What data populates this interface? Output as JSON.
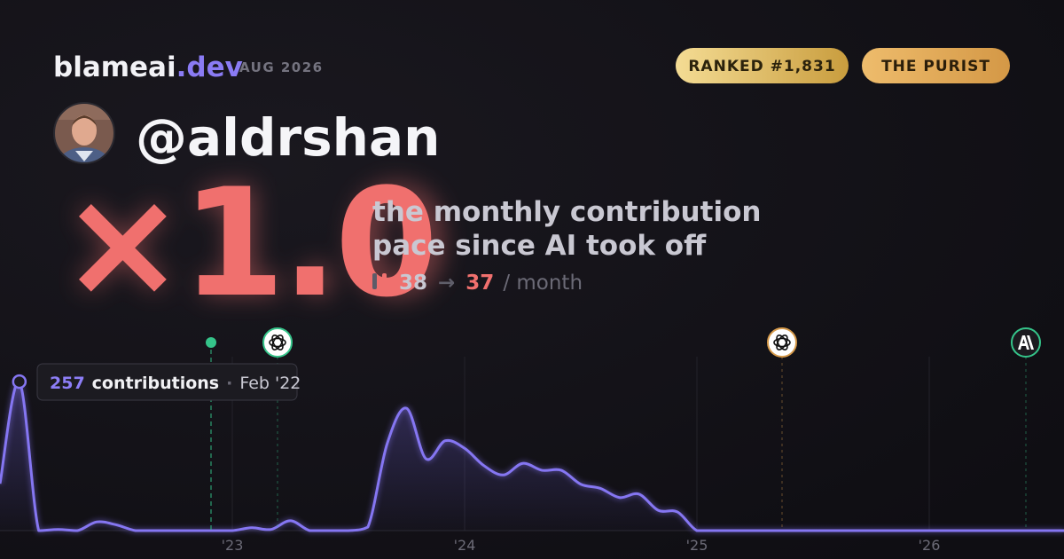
{
  "header": {
    "brand": "blameai",
    "brand_tld": ".dev",
    "period": "AUG 2026",
    "badges": [
      "RANKED #1,831",
      "THE PURIST"
    ]
  },
  "profile": {
    "handle": "@aldrshan"
  },
  "headline": {
    "multiplier": "×1.0",
    "description": [
      "the monthly contribution",
      "pace since AI took off"
    ],
    "before": 38,
    "arrow": "→",
    "after": 37,
    "unit": "/ month"
  },
  "tooltip": {
    "label": "contributions",
    "separator": "·",
    "date": "Feb '22"
  },
  "chart_data": {
    "type": "area",
    "color": "#8576f2",
    "categories": [
      null,
      null,
      null,
      null,
      null,
      null,
      null,
      null,
      null,
      null,
      null,
      null,
      "'23",
      null,
      null,
      null,
      null,
      null,
      null,
      null,
      null,
      null,
      null,
      null,
      "'24",
      null,
      null,
      null,
      null,
      null,
      null,
      null,
      null,
      null,
      null,
      null,
      "'25",
      null,
      null,
      null,
      null,
      null,
      null,
      null,
      null,
      null,
      null,
      null,
      "'26",
      null,
      null,
      null,
      null,
      null,
      null,
      null
    ],
    "values": [
      81,
      257,
      0,
      2,
      0,
      15,
      10,
      0,
      0,
      0,
      0,
      0,
      0,
      5,
      2,
      17,
      0,
      0,
      0,
      6,
      150,
      211,
      124,
      155,
      142,
      112,
      96,
      116,
      104,
      104,
      80,
      73,
      57,
      63,
      35,
      32,
      0,
      0,
      0,
      0,
      0,
      0,
      0,
      0,
      0,
      0,
      0,
      0,
      0,
      0,
      0,
      0,
      0,
      0,
      0,
      0
    ],
    "ylim": [
      0,
      300
    ]
  }
}
